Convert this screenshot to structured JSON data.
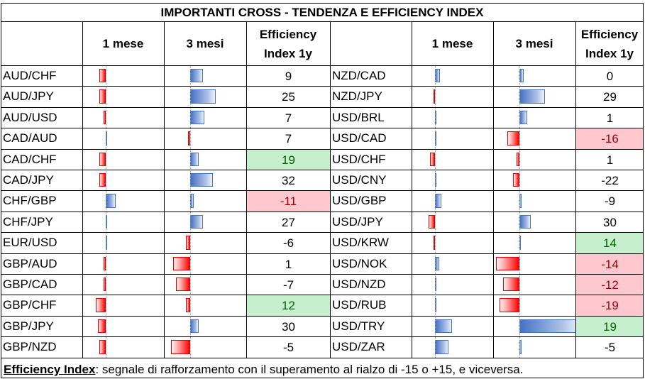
{
  "title": "IMPORTANTI CROSS - TENDENZA E EFFICIENCY INDEX",
  "headers": {
    "one_month": "1 mese",
    "three_months": "3 mesi",
    "efficiency_line1": "Efficiency",
    "efficiency_line2": "Index 1y"
  },
  "colors": {
    "negative_bar": "#ff0000",
    "positive_bar": "#4472c4",
    "green_fill": "#c6efce",
    "green_text": "#006100",
    "red_fill": "#ffc7ce",
    "red_text": "#9c0006"
  },
  "left_rows": [
    {
      "pair": "AUD/CHF",
      "m1": -0.9,
      "m3": 1.8,
      "eff": "9"
    },
    {
      "pair": "AUD/JPY",
      "m1": -0.9,
      "m3": 3.6,
      "eff": "25"
    },
    {
      "pair": "AUD/USD",
      "m1": -0.3,
      "m3": 2.0,
      "eff": "7"
    },
    {
      "pair": "CAD/AUD",
      "m1": 0.0,
      "m3": -0.3,
      "eff": "7"
    },
    {
      "pair": "CAD/CHF",
      "m1": -0.9,
      "m3": 1.2,
      "eff": "19",
      "highlight": "green"
    },
    {
      "pair": "CAD/JPY",
      "m1": -0.9,
      "m3": 3.2,
      "eff": "32"
    },
    {
      "pair": "CHF/GBP",
      "m1": 1.4,
      "m3": 0.5,
      "eff": "-11",
      "highlight": "red"
    },
    {
      "pair": "CHF/JPY",
      "m1": 0.0,
      "m3": 1.8,
      "eff": "27"
    },
    {
      "pair": "EUR/USD",
      "m1": 0.0,
      "m3": -0.6,
      "eff": "-6"
    },
    {
      "pair": "GBP/AUD",
      "m1": -0.3,
      "m3": -2.4,
      "eff": "1"
    },
    {
      "pair": "GBP/CAD",
      "m1": -0.3,
      "m3": -2.0,
      "eff": "-7"
    },
    {
      "pair": "GBP/CHF",
      "m1": -1.4,
      "m3": -0.6,
      "eff": "12",
      "highlight": "green"
    },
    {
      "pair": "GBP/JPY",
      "m1": -1.1,
      "m3": 1.2,
      "eff": "30"
    },
    {
      "pair": "GBP/NZD",
      "m1": -0.9,
      "m3": -2.7,
      "eff": "-5"
    }
  ],
  "right_rows": [
    {
      "pair": "NZD/CAD",
      "m1": 0.7,
      "m3": 0.6,
      "eff": "0"
    },
    {
      "pair": "NZD/JPY",
      "m1": -0.2,
      "m3": 3.6,
      "eff": "29"
    },
    {
      "pair": "USD/BRL",
      "m1": 0.2,
      "m3": 1.1,
      "eff": "1"
    },
    {
      "pair": "USD/CAD",
      "m1": 0.2,
      "m3": -1.7,
      "eff": "-16",
      "highlight": "red"
    },
    {
      "pair": "USD/CHF",
      "m1": -0.7,
      "m3": -0.4,
      "eff": "1"
    },
    {
      "pair": "USD/CNY",
      "m1": 0.0,
      "m3": -0.9,
      "eff": "-22"
    },
    {
      "pair": "USD/GBP",
      "m1": 0.9,
      "m3": 0.3,
      "eff": "-9"
    },
    {
      "pair": "USD/JPY",
      "m1": -0.9,
      "m3": 1.6,
      "eff": "30"
    },
    {
      "pair": "USD/KRW",
      "m1": -0.2,
      "m3": 0.0,
      "eff": "14",
      "highlight": "green"
    },
    {
      "pair": "USD/NOK",
      "m1": 0.6,
      "m3": -3.3,
      "eff": "-14",
      "highlight": "red"
    },
    {
      "pair": "USD/NZD",
      "m1": 0.0,
      "m3": -2.3,
      "eff": "-12",
      "highlight": "red"
    },
    {
      "pair": "USD/RUB",
      "m1": 0.0,
      "m3": -2.8,
      "eff": "-19",
      "highlight": "red"
    },
    {
      "pair": "USD/TRY",
      "m1": 2.4,
      "m3": 8.7,
      "eff": "19",
      "highlight": "green"
    },
    {
      "pair": "USD/ZAR",
      "m1": 1.9,
      "m3": 0.3,
      "eff": "-5"
    }
  ],
  "footnote": {
    "label": "Efficiency Index",
    "text": ": segnale di rafforzamento con il superamento al rialzo di -15 o +15, e viceversa."
  }
}
